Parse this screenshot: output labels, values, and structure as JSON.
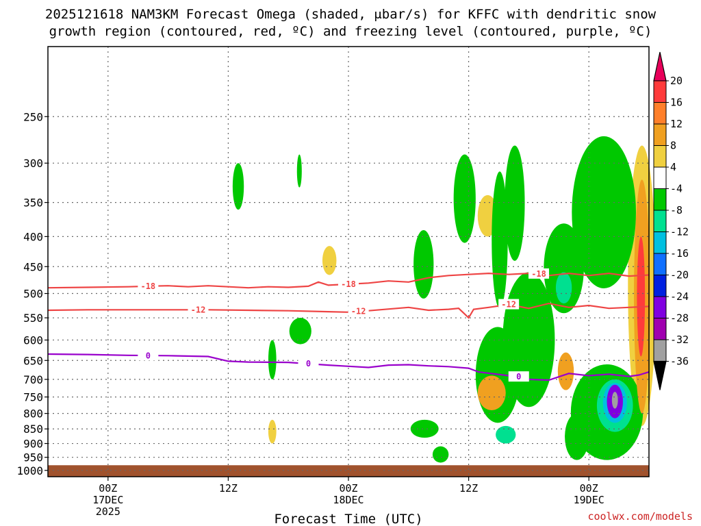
{
  "title": {
    "line1": "2025121618 NAM3KM Forecast Omega (shaded, μbar/s) for KFFC with dendritic snow",
    "line2": "growth region (contoured, red, ºC) and freezing level (contoured, purple, ºC)"
  },
  "credit": "coolwx.com/models",
  "chart_data": {
    "type": "time-height contour",
    "xlabel": "Forecast Time (UTC)",
    "ylabel": "",
    "x_unit": "forecast hour from 2025121618",
    "xlim": [
      0,
      60
    ],
    "y_scale": "log-pressure",
    "ylim": [
      1025,
      190
    ],
    "y_ticks": [
      250,
      300,
      350,
      400,
      450,
      500,
      550,
      600,
      650,
      700,
      750,
      800,
      850,
      900,
      950,
      1000
    ],
    "x_ticks": [
      {
        "hour": 6,
        "lines": [
          "00Z",
          "17DEC",
          "2025"
        ]
      },
      {
        "hour": 18,
        "lines": [
          "12Z"
        ]
      },
      {
        "hour": 30,
        "lines": [
          "00Z",
          "18DEC"
        ]
      },
      {
        "hour": 42,
        "lines": [
          "12Z"
        ]
      },
      {
        "hour": 54,
        "lines": [
          "00Z",
          "19DEC"
        ]
      }
    ],
    "grid": true,
    "colorbar": {
      "labels": [
        "20",
        "16",
        "12",
        "8",
        "4",
        "-4",
        "-8",
        "-12",
        "-16",
        "-20",
        "-24",
        "-28",
        "-32",
        "-36"
      ],
      "colors": [
        "#e8005a",
        "#ff3b3b",
        "#ff7f2a",
        "#f0a020",
        "#f0d040",
        "#ffffff",
        "#00c800",
        "#00e090",
        "#00c0e0",
        "#1070ff",
        "#0020e0",
        "#8000e0",
        "#a000b0",
        "#a0a0a0",
        "#000000"
      ]
    },
    "contour_colors": {
      "dgz": "#ee4444",
      "freezing": "#9900cc",
      "ground": "#a0522d"
    },
    "contours": [
      {
        "name": "-18",
        "kind": "dgz",
        "label": "-18",
        "points": [
          [
            0,
            489
          ],
          [
            4,
            488
          ],
          [
            8,
            487
          ],
          [
            10,
            486
          ],
          [
            12,
            485
          ],
          [
            14,
            487
          ],
          [
            16,
            485
          ],
          [
            18,
            487
          ],
          [
            20,
            489
          ],
          [
            22,
            487
          ],
          [
            24,
            488
          ],
          [
            26,
            486
          ],
          [
            27,
            478
          ],
          [
            28,
            484
          ],
          [
            30,
            482
          ],
          [
            32,
            480
          ],
          [
            34,
            476
          ],
          [
            36,
            478
          ],
          [
            38,
            470
          ],
          [
            40,
            466
          ],
          [
            42,
            464
          ],
          [
            44,
            462
          ],
          [
            46,
            464
          ],
          [
            48,
            462
          ],
          [
            50,
            466
          ],
          [
            52,
            462
          ],
          [
            54,
            466
          ],
          [
            56,
            462
          ],
          [
            58,
            467
          ],
          [
            60,
            465
          ]
        ],
        "label_at": [
          [
            10,
            486
          ],
          [
            30,
            482
          ],
          [
            49,
            463
          ]
        ]
      },
      {
        "name": "-12",
        "kind": "dgz",
        "label": "-12",
        "points": [
          [
            0,
            534
          ],
          [
            4,
            533
          ],
          [
            8,
            533
          ],
          [
            12,
            533
          ],
          [
            16,
            533
          ],
          [
            20,
            534
          ],
          [
            24,
            535
          ],
          [
            28,
            537
          ],
          [
            30,
            538
          ],
          [
            32,
            535
          ],
          [
            36,
            528
          ],
          [
            38,
            534
          ],
          [
            40,
            532
          ],
          [
            41,
            530
          ],
          [
            42,
            550
          ],
          [
            42.5,
            532
          ],
          [
            44,
            528
          ],
          [
            46,
            522
          ],
          [
            48,
            530
          ],
          [
            50,
            520
          ],
          [
            52,
            528
          ],
          [
            54,
            524
          ],
          [
            56,
            530
          ],
          [
            58,
            528
          ],
          [
            60,
            526
          ]
        ],
        "label_at": [
          [
            15,
            533
          ],
          [
            31,
            536
          ],
          [
            46,
            522
          ]
        ]
      },
      {
        "name": "0",
        "kind": "freezing",
        "label": "0",
        "points": [
          [
            0,
            634
          ],
          [
            4,
            635
          ],
          [
            8,
            637
          ],
          [
            12,
            638
          ],
          [
            16,
            640
          ],
          [
            18,
            652
          ],
          [
            20,
            654
          ],
          [
            24,
            655
          ],
          [
            28,
            662
          ],
          [
            30,
            665
          ],
          [
            32,
            668
          ],
          [
            34,
            662
          ],
          [
            36,
            661
          ],
          [
            38,
            664
          ],
          [
            40,
            666
          ],
          [
            42,
            670
          ],
          [
            43,
            680
          ],
          [
            46,
            690
          ],
          [
            48,
            700
          ],
          [
            50,
            702
          ],
          [
            52,
            684
          ],
          [
            54,
            690
          ],
          [
            56,
            686
          ],
          [
            58,
            692
          ],
          [
            59,
            688
          ],
          [
            60,
            680
          ]
        ],
        "label_at": [
          [
            10,
            638
          ],
          [
            26,
            658
          ],
          [
            47,
            693
          ]
        ]
      }
    ],
    "ground_level_hPa": 980,
    "omega_regions": [
      {
        "name": "rise-12z17-a",
        "value": -6,
        "x": 19.0,
        "p": 330,
        "rx": 0.28,
        "rp": 30
      },
      {
        "name": "rise-12z17-b",
        "value": -6,
        "x": 25.1,
        "p": 310,
        "rx": 0.12,
        "rp": 20
      },
      {
        "name": "sink-17-a",
        "value": 6,
        "x": 28.1,
        "p": 440,
        "rx": 0.35,
        "rp": 25
      },
      {
        "name": "rise-17-c",
        "value": -6,
        "x": 25.2,
        "p": 580,
        "rx": 0.55,
        "rp": 30
      },
      {
        "name": "rise-17-d",
        "value": -6,
        "x": 22.4,
        "p": 650,
        "rx": 0.2,
        "rp": 50
      },
      {
        "name": "sink-17-e",
        "value": 6,
        "x": 22.4,
        "p": 860,
        "rx": 0.2,
        "rp": 40
      },
      {
        "name": "rise-18-a",
        "value": -6,
        "x": 37.5,
        "p": 450,
        "rx": 0.5,
        "rp": 60
      },
      {
        "name": "rise-18-b",
        "value": -6,
        "x": 41.6,
        "p": 350,
        "rx": 0.55,
        "rp": 60
      },
      {
        "name": "sink-18-c",
        "value": 6,
        "x": 43.9,
        "p": 370,
        "rx": 0.5,
        "rp": 30
      },
      {
        "name": "rise-18-d",
        "value": -8,
        "x": 45.1,
        "p": 420,
        "rx": 0.4,
        "rp": 110
      },
      {
        "name": "rise-18-e",
        "value": -8,
        "x": 46.6,
        "p": 360,
        "rx": 0.5,
        "rp": 80
      },
      {
        "name": "rise-18-f",
        "value": -8,
        "x": 44.9,
        "p": 700,
        "rx": 1.1,
        "rp": 130
      },
      {
        "name": "sink-18-g",
        "value": 8,
        "x": 44.3,
        "p": 740,
        "rx": 0.7,
        "rp": 50
      },
      {
        "name": "rise-18-h",
        "value": -8,
        "x": 48.0,
        "p": 620,
        "rx": 1.3,
        "rp": 160
      },
      {
        "name": "rise-18-i",
        "value": -12,
        "x": 45.7,
        "p": 870,
        "rx": 0.5,
        "rp": 30
      },
      {
        "name": "rise-18-j",
        "value": -6,
        "x": 37.6,
        "p": 850,
        "rx": 0.7,
        "rp": 30
      },
      {
        "name": "rise-18-k",
        "value": -6,
        "x": 39.2,
        "p": 940,
        "rx": 0.4,
        "rp": 30
      },
      {
        "name": "rise-19-a",
        "value": -8,
        "x": 51.5,
        "p": 460,
        "rx": 1.0,
        "rp": 80
      },
      {
        "name": "rise-19-b",
        "value": -12,
        "x": 51.5,
        "p": 490,
        "rx": 0.4,
        "rp": 30
      },
      {
        "name": "sink-19-c",
        "value": 8,
        "x": 51.7,
        "p": 680,
        "rx": 0.4,
        "rp": 50
      },
      {
        "name": "rise-19-d",
        "value": -8,
        "x": 52.8,
        "p": 880,
        "rx": 0.6,
        "rp": 80
      },
      {
        "name": "sink-19-e",
        "value": 6,
        "x": 53.6,
        "p": 870,
        "rx": 0.3,
        "rp": 40
      },
      {
        "name": "rise-19-f",
        "value": -8,
        "x": 55.5,
        "p": 380,
        "rx": 1.6,
        "rp": 110
      },
      {
        "name": "rise-19-g",
        "value": -8,
        "x": 55.8,
        "p": 810,
        "rx": 1.8,
        "rp": 150
      },
      {
        "name": "rise-19-h",
        "value": -12,
        "x": 56.6,
        "p": 780,
        "rx": 0.9,
        "rp": 80
      },
      {
        "name": "rise-19-i",
        "value": -16,
        "x": 56.6,
        "p": 770,
        "rx": 0.6,
        "rp": 60
      },
      {
        "name": "rise-19-j",
        "value": -28,
        "x": 56.6,
        "p": 765,
        "rx": 0.4,
        "rp": 50
      },
      {
        "name": "rise-19-k",
        "value": -36,
        "x": 56.6,
        "p": 760,
        "rx": 0.15,
        "rp": 25
      },
      {
        "name": "sink-19-l",
        "value": 6,
        "x": 59.3,
        "p": 560,
        "rx": 0.7,
        "rp": 280
      },
      {
        "name": "sink-19-m",
        "value": 10,
        "x": 59.3,
        "p": 560,
        "rx": 0.4,
        "rp": 240
      },
      {
        "name": "sink-19-n",
        "value": 18,
        "x": 59.2,
        "p": 520,
        "rx": 0.2,
        "rp": 120
      }
    ]
  }
}
